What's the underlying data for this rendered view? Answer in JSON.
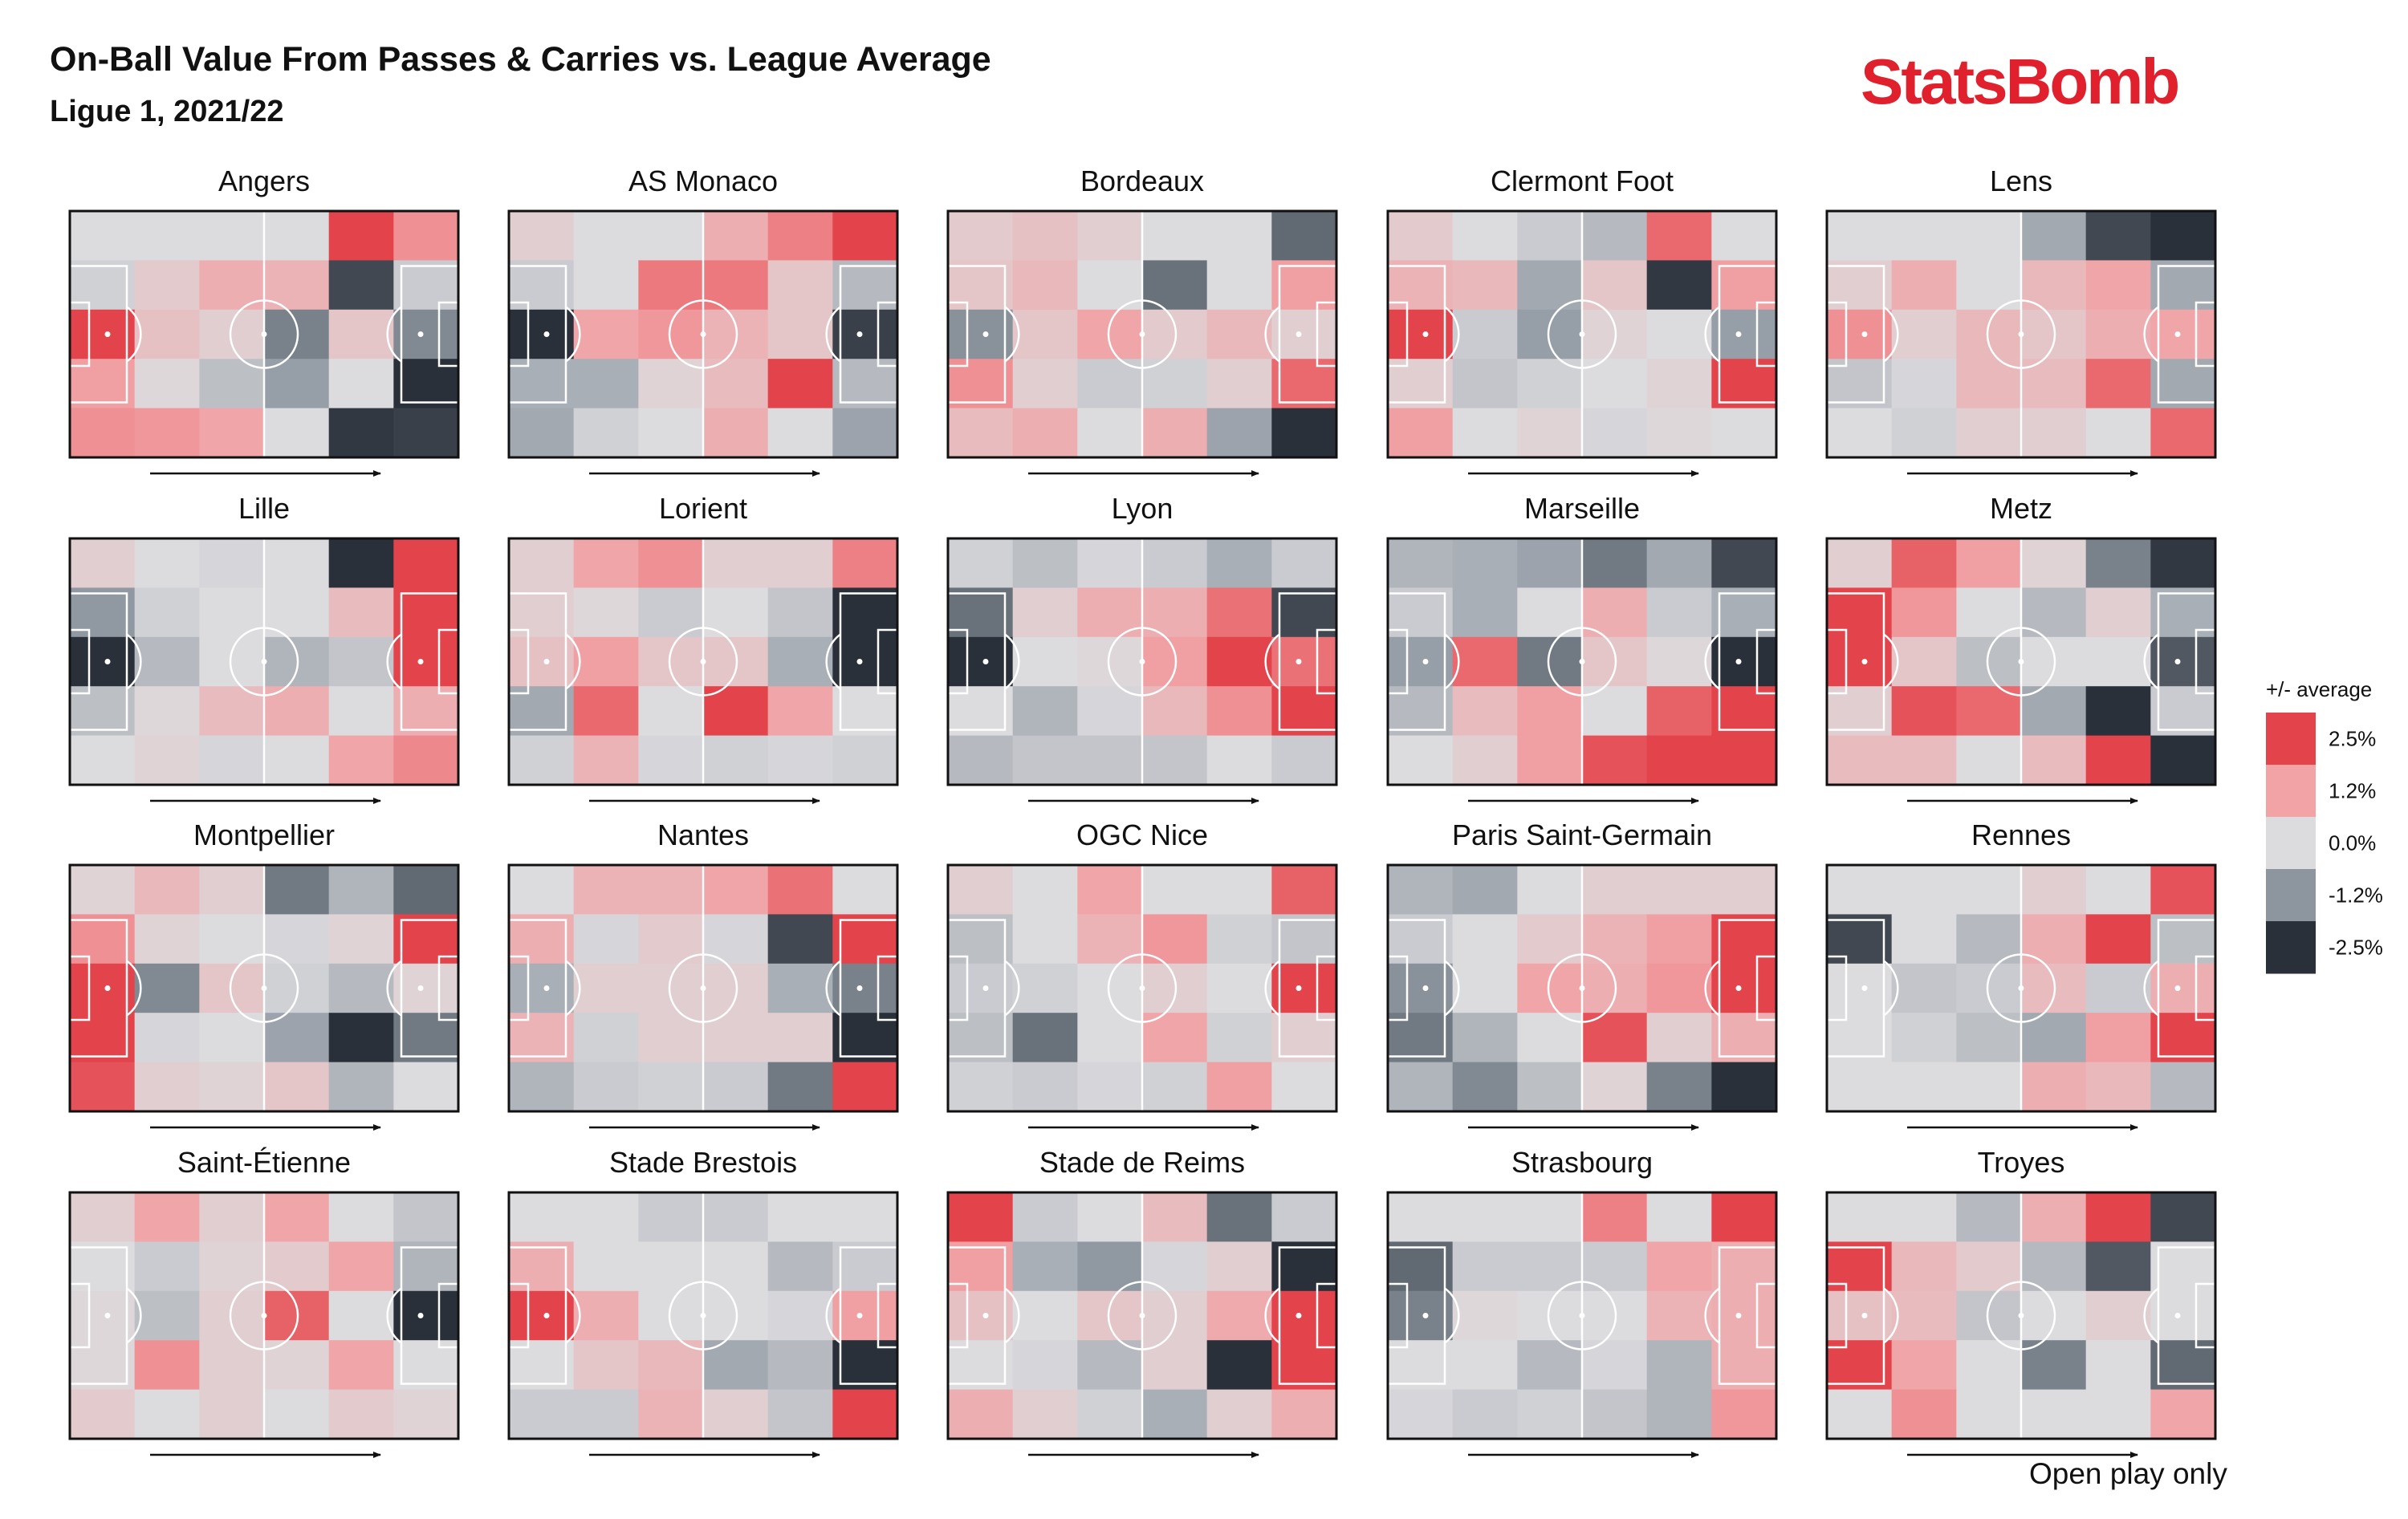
{
  "title": "On-Ball Value From Passes & Carries vs. League Average",
  "subtitle": "Ligue 1, 2021/22",
  "brand": "StatsBomb",
  "footnote": "Open play only",
  "colors": {
    "pos_high": "#e3434a",
    "pos_mid": "#f1a3a6",
    "neutral": "#dcdcdf",
    "neg_mid": "#8d959f",
    "neg_high": "#2a3039",
    "lines": "#ffffff",
    "border": "#111111"
  },
  "legend": {
    "title": "+/- average",
    "ticks": [
      "2.5%",
      "1.2%",
      "0.0%",
      "-1.2%",
      "-2.5%"
    ]
  },
  "chart_data": {
    "type": "heatmap",
    "grid": "6x5 pitch zones",
    "value_unit": "% vs league average",
    "scale_range": [
      -2.5,
      2.5
    ],
    "teams": [
      {
        "name": "Angers",
        "values": [
          [
            0,
            0,
            0,
            0,
            2.5,
            1.5
          ],
          [
            -0.2,
            0.4,
            1,
            0.9,
            -2.2,
            -0.3
          ],
          [
            2.5,
            0.6,
            0.3,
            -1.5,
            0.5,
            -1.4
          ],
          [
            1.3,
            0.1,
            -0.5,
            -1.1,
            0,
            -2.5
          ],
          [
            1.5,
            1.4,
            1.2,
            0,
            -2.4,
            -2.3
          ]
        ]
      },
      {
        "name": "AS Monaco",
        "values": [
          [
            0.3,
            0,
            0,
            1,
            1.7,
            2.5
          ],
          [
            -0.3,
            0,
            1.8,
            1.8,
            0.5,
            -0.6
          ],
          [
            -2.5,
            1.2,
            1.4,
            0.9,
            0.5,
            -2.3
          ],
          [
            -0.8,
            -0.8,
            0.2,
            0.7,
            2.5,
            -0.6
          ],
          [
            -0.9,
            -0.2,
            0,
            1,
            0,
            -1
          ]
        ]
      },
      {
        "name": "Bordeaux",
        "values": [
          [
            0.4,
            0.6,
            0.3,
            0,
            0,
            -1.8
          ],
          [
            0.5,
            0.8,
            0,
            -1.7,
            0,
            1.3
          ],
          [
            -1.3,
            0.5,
            1.2,
            0.4,
            0.8,
            0.3
          ],
          [
            1.5,
            0.3,
            -0.3,
            -0.2,
            0.3,
            2
          ],
          [
            0.7,
            1,
            0,
            1,
            -1,
            -2.5
          ]
        ]
      },
      {
        "name": "Clermont Foot",
        "values": [
          [
            0.4,
            0,
            -0.3,
            -0.6,
            2,
            0
          ],
          [
            0.9,
            0.8,
            -0.9,
            0.5,
            -2.4,
            1.3
          ],
          [
            2.5,
            -0.3,
            -1.1,
            0.2,
            0,
            -1.1
          ],
          [
            0.3,
            -0.4,
            -0.2,
            0,
            0.2,
            2.5
          ],
          [
            1.3,
            0,
            0.2,
            -0.1,
            0.1,
            0
          ]
        ]
      },
      {
        "name": "Lens",
        "values": [
          [
            0,
            0,
            0,
            -0.9,
            -2.2,
            -2.5
          ],
          [
            0.3,
            1,
            0,
            0.8,
            1.2,
            -0.9
          ],
          [
            1.5,
            0.3,
            0.8,
            0.5,
            1,
            1.2
          ],
          [
            -0.4,
            -0.1,
            0.8,
            0.7,
            2,
            -0.9
          ],
          [
            0,
            -0.2,
            0.3,
            0.3,
            0,
            2
          ]
        ]
      },
      {
        "name": "Lille",
        "values": [
          [
            0.3,
            0,
            -0.1,
            0,
            -2.5,
            2.5
          ],
          [
            -1.2,
            -0.2,
            0,
            0,
            0.7,
            2.5
          ],
          [
            -2.5,
            -0.6,
            0,
            -0.7,
            -0.4,
            2.5
          ],
          [
            -0.5,
            0.1,
            0.7,
            1,
            0,
            1
          ],
          [
            0,
            0.2,
            -0.1,
            0,
            1.2,
            1.6
          ]
        ]
      },
      {
        "name": "Lorient",
        "values": [
          [
            0.3,
            1.2,
            1.5,
            0.3,
            0.3,
            1.7
          ],
          [
            0.3,
            0.1,
            -0.3,
            0,
            -0.4,
            -2.5
          ],
          [
            0.6,
            1.3,
            0.5,
            0.5,
            -0.8,
            -2.5
          ],
          [
            -0.9,
            2,
            0,
            2.5,
            1.2,
            0
          ],
          [
            -0.2,
            0.9,
            -0.1,
            -0.2,
            -0.1,
            -0.2
          ]
        ]
      },
      {
        "name": "Lyon",
        "values": [
          [
            -0.2,
            -0.5,
            -0.1,
            -0.3,
            -0.8,
            -0.3
          ],
          [
            -1.7,
            0.3,
            1,
            1,
            1.9,
            -2.2
          ],
          [
            -2.5,
            0,
            0.1,
            1.3,
            2.5,
            1.9
          ],
          [
            0,
            -0.7,
            -0.1,
            0.8,
            1.5,
            2.5
          ],
          [
            -0.6,
            -0.4,
            -0.4,
            -0.4,
            0,
            -0.3
          ]
        ]
      },
      {
        "name": "Marseille",
        "values": [
          [
            -0.7,
            -0.8,
            -1,
            -1.6,
            -0.9,
            -2.2
          ],
          [
            -0.3,
            -0.8,
            0,
            1,
            -0.3,
            -0.8
          ],
          [
            -1.1,
            2,
            -1.6,
            0.5,
            0.1,
            -2.5
          ],
          [
            -0.6,
            0.7,
            1.3,
            0,
            2.1,
            2.5
          ],
          [
            0,
            0.3,
            1.3,
            2.3,
            2.5,
            2.5
          ]
        ]
      },
      {
        "name": "Metz",
        "values": [
          [
            0.3,
            2.1,
            1.3,
            0.2,
            -1.5,
            -2.4
          ],
          [
            2.5,
            1.4,
            0,
            -0.6,
            0.3,
            -0.8
          ],
          [
            2.5,
            0.5,
            -0.5,
            0,
            0,
            -2
          ],
          [
            0.3,
            2.3,
            2,
            -0.9,
            -2.5,
            -0.3
          ],
          [
            0.7,
            0.7,
            0,
            0.7,
            2.5,
            -2.5
          ]
        ]
      },
      {
        "name": "Montpellier",
        "values": [
          [
            0.2,
            0.8,
            0.3,
            -1.6,
            -0.7,
            -1.8
          ],
          [
            1.5,
            0.2,
            0,
            -0.1,
            0.2,
            2.5
          ],
          [
            2.5,
            -1.4,
            0.5,
            -0.2,
            -0.6,
            0.2
          ],
          [
            2.5,
            -0.1,
            0,
            -1,
            -2.5,
            -1.6
          ],
          [
            2.3,
            0.3,
            0.2,
            0.5,
            -0.7,
            0
          ]
        ]
      },
      {
        "name": "Nantes",
        "values": [
          [
            0,
            0.9,
            0.9,
            1.2,
            1.9,
            0
          ],
          [
            1,
            -0.1,
            0.4,
            -0.1,
            -2.2,
            2.5
          ],
          [
            -0.8,
            0.3,
            0.3,
            0.3,
            -0.8,
            -1.5
          ],
          [
            0.9,
            -0.2,
            0.3,
            0.3,
            0.3,
            -2.5
          ],
          [
            -0.7,
            -0.3,
            -0.2,
            -0.3,
            -1.6,
            2.5
          ]
        ]
      },
      {
        "name": "OGC Nice",
        "values": [
          [
            0.3,
            0,
            1.2,
            0,
            0,
            2.1
          ],
          [
            -0.5,
            0,
            0.9,
            1.4,
            -0.2,
            -0.4
          ],
          [
            -0.3,
            -0.2,
            0,
            0.3,
            0,
            2.5
          ],
          [
            -0.5,
            -1.7,
            0,
            1.2,
            -0.2,
            0.3
          ],
          [
            -0.2,
            -0.3,
            -0.1,
            -0.2,
            1.3,
            0
          ]
        ]
      },
      {
        "name": "Paris Saint-Germain",
        "values": [
          [
            -0.7,
            -0.9,
            0,
            0.3,
            0.3,
            0.3
          ],
          [
            -0.3,
            0,
            0.4,
            0.9,
            1.3,
            2.5
          ],
          [
            -1.3,
            0,
            1.2,
            1,
            1.4,
            2.5
          ],
          [
            -1.6,
            -0.7,
            0,
            2.3,
            0.3,
            1
          ],
          [
            -0.7,
            -1.4,
            -0.5,
            0.2,
            -1.5,
            -2.5
          ]
        ]
      },
      {
        "name": "Rennes",
        "values": [
          [
            0,
            0,
            0,
            0.3,
            0,
            2.3
          ],
          [
            -2.2,
            0,
            -0.6,
            1,
            2.5,
            -0.5
          ],
          [
            0,
            -0.4,
            -0.3,
            0.7,
            -0.3,
            1
          ],
          [
            0,
            -0.2,
            -0.5,
            -0.9,
            1.3,
            2.5
          ],
          [
            0,
            0,
            0,
            1,
            0.8,
            -0.6
          ]
        ]
      },
      {
        "name": "Saint-Étienne",
        "values": [
          [
            0.3,
            1.2,
            0.3,
            1.2,
            0,
            -0.4
          ],
          [
            0,
            -0.3,
            0.2,
            0.4,
            1.2,
            -0.7
          ],
          [
            0.1,
            -0.5,
            0.3,
            2.1,
            0,
            -2.5
          ],
          [
            0.1,
            1.5,
            0.3,
            0.2,
            1.2,
            0
          ],
          [
            0.4,
            0,
            0.3,
            0,
            0.4,
            0.2
          ]
        ]
      },
      {
        "name": "Stade Brestois",
        "values": [
          [
            0,
            0,
            -0.3,
            -0.3,
            0,
            0
          ],
          [
            1,
            0,
            0,
            0,
            -0.6,
            -0.3
          ],
          [
            2.5,
            1,
            0,
            0,
            -0.1,
            1.3
          ],
          [
            0,
            0.5,
            0.8,
            -0.9,
            -0.6,
            -2.5
          ],
          [
            -0.3,
            -0.3,
            0.9,
            0.3,
            -0.4,
            2.5
          ]
        ]
      },
      {
        "name": "Stade de Reims",
        "values": [
          [
            2.5,
            -0.3,
            0,
            0.7,
            -1.7,
            -0.3
          ],
          [
            1.3,
            -0.8,
            -1.2,
            -0.1,
            0.3,
            -2.5
          ],
          [
            0.6,
            0,
            0.5,
            0.3,
            1.1,
            2.5
          ],
          [
            0,
            -0.1,
            -0.6,
            0.3,
            -2.5,
            2.5
          ],
          [
            1,
            0.3,
            -0.2,
            -0.8,
            0.3,
            1
          ]
        ]
      },
      {
        "name": "Strasbourg",
        "values": [
          [
            0,
            0,
            0,
            1.7,
            0,
            2.5
          ],
          [
            -1.8,
            -0.3,
            -0.3,
            -0.3,
            1.2,
            1
          ],
          [
            -1.5,
            0.1,
            0,
            0,
            0.9,
            1
          ],
          [
            0,
            0,
            -0.6,
            -0.1,
            -0.7,
            1
          ],
          [
            -0.1,
            -0.3,
            -0.2,
            -0.4,
            -0.7,
            1.4
          ]
        ]
      },
      {
        "name": "Troyes",
        "values": [
          [
            0,
            0,
            -0.6,
            1,
            2.5,
            -2.2
          ],
          [
            2.5,
            0.8,
            0.4,
            -0.6,
            -2,
            0
          ],
          [
            0.6,
            0.7,
            -0.4,
            0,
            0.3,
            0
          ],
          [
            2.5,
            1.2,
            0,
            -1.5,
            0,
            -1.8
          ],
          [
            0,
            1.5,
            0,
            0,
            0,
            1.2
          ]
        ]
      }
    ]
  }
}
